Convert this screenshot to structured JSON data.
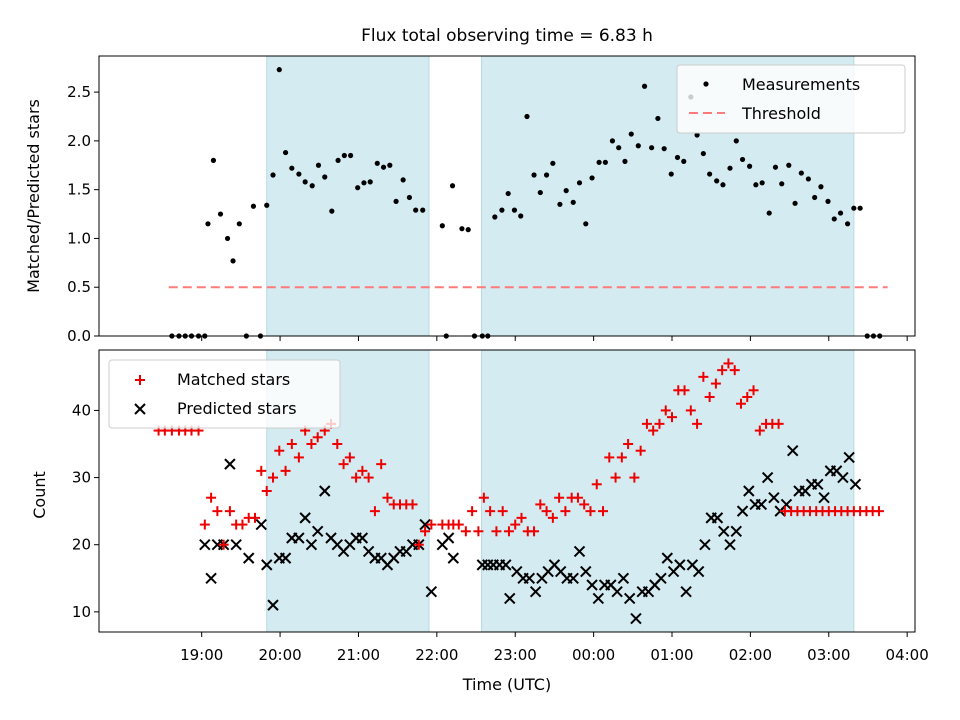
{
  "title": "Flux total observing time = 6.83 h",
  "colors": {
    "observing_span": "#d4ebf1",
    "measurements": "#000000",
    "threshold": "#ff7a7a",
    "matched": "#ee0000",
    "predicted": "#000000"
  },
  "chart_data": [
    {
      "type": "scatter",
      "ylabel": "Matched/Predicted stars",
      "ylim": [
        0,
        2.87
      ],
      "yticks": [
        0.0,
        0.5,
        1.0,
        1.5,
        2.0,
        2.5
      ],
      "ytick_labels": [
        "0.0",
        "0.5",
        "1.0",
        "1.5",
        "2.0",
        "2.5"
      ],
      "legend": {
        "placement": "top-right",
        "measurements_label": "Measurements",
        "threshold_label": "Threshold"
      },
      "observing_spans": [
        [
          19.83,
          21.9
        ],
        [
          22.57,
          27.32
        ]
      ],
      "threshold": {
        "value": 0.5,
        "x_start": 18.58,
        "x_end": 27.75
      },
      "series": [
        {
          "name": "Measurements",
          "x": [
            18.62,
            18.71,
            18.79,
            18.87,
            18.96,
            19.04,
            19.08,
            19.15,
            19.24,
            19.33,
            19.4,
            19.48,
            19.57,
            19.66,
            19.75,
            19.83,
            19.91,
            19.99,
            20.07,
            20.15,
            20.24,
            20.32,
            20.41,
            20.49,
            20.57,
            20.66,
            20.74,
            20.82,
            20.9,
            20.99,
            21.07,
            21.15,
            21.24,
            21.32,
            21.4,
            21.48,
            21.57,
            21.65,
            21.73,
            21.82,
            22.07,
            22.12,
            22.2,
            22.32,
            22.4,
            22.48,
            22.58,
            22.65,
            22.74,
            22.83,
            22.91,
            22.99,
            23.07,
            23.15,
            23.24,
            23.32,
            23.4,
            23.48,
            23.57,
            23.65,
            23.74,
            23.82,
            23.9,
            23.98,
            24.07,
            24.15,
            24.24,
            24.32,
            24.4,
            24.48,
            24.57,
            24.65,
            24.74,
            24.82,
            24.9,
            24.99,
            25.07,
            25.15,
            25.24,
            25.32,
            25.4,
            25.48,
            25.57,
            25.65,
            25.74,
            25.82,
            25.9,
            25.99,
            26.07,
            26.15,
            26.24,
            26.32,
            26.4,
            26.49,
            26.57,
            26.65,
            26.74,
            26.82,
            26.9,
            26.99,
            27.07,
            27.15,
            27.24,
            27.32,
            27.4,
            27.49,
            27.57,
            27.65
          ],
          "y": [
            0,
            0,
            0,
            0,
            0,
            0,
            1.15,
            1.8,
            1.25,
            1.0,
            0.77,
            1.15,
            0,
            1.33,
            0,
            1.34,
            1.65,
            2.73,
            1.88,
            1.72,
            1.66,
            1.58,
            1.54,
            1.75,
            1.63,
            1.28,
            1.8,
            1.85,
            1.85,
            1.52,
            1.57,
            1.58,
            1.77,
            1.73,
            1.75,
            1.38,
            1.6,
            1.42,
            1.29,
            1.29,
            1.13,
            0,
            1.54,
            1.1,
            1.09,
            0,
            0,
            0,
            1.22,
            1.29,
            1.46,
            1.29,
            1.23,
            2.25,
            1.65,
            1.47,
            1.65,
            1.77,
            1.35,
            1.49,
            1.37,
            1.57,
            1.15,
            1.62,
            1.78,
            1.78,
            2.0,
            1.93,
            1.79,
            2.07,
            1.95,
            2.56,
            1.93,
            2.23,
            1.92,
            1.66,
            1.83,
            1.79,
            2.45,
            2.06,
            1.87,
            1.66,
            1.59,
            1.55,
            1.72,
            2.0,
            1.81,
            1.74,
            1.55,
            1.57,
            1.26,
            1.73,
            1.56,
            1.75,
            1.36,
            1.67,
            1.61,
            1.42,
            1.53,
            1.38,
            1.2,
            1.26,
            1.15,
            1.31,
            1.31,
            0,
            0,
            0
          ]
        }
      ]
    },
    {
      "type": "scatter",
      "xlabel": "Time (UTC)",
      "ylabel": "Count",
      "ylim": [
        7,
        49
      ],
      "yticks": [
        10,
        20,
        30,
        40
      ],
      "ytick_labels": [
        "10",
        "20",
        "30",
        "40"
      ],
      "xlim": [
        17.69,
        28.1
      ],
      "xticks": [
        19,
        20,
        21,
        22,
        23,
        24,
        25,
        26,
        27,
        28
      ],
      "xtick_labels": [
        "19:00",
        "20:00",
        "21:00",
        "22:00",
        "23:00",
        "00:00",
        "01:00",
        "02:00",
        "03:00",
        "04:00"
      ],
      "legend": {
        "placement": "top-left"
      },
      "observing_spans": [
        [
          19.83,
          21.9
        ],
        [
          22.57,
          27.32
        ]
      ],
      "series": [
        {
          "name": "Matched stars",
          "x": [
            18.45,
            18.53,
            18.62,
            18.71,
            18.79,
            18.87,
            18.96,
            19.04,
            19.12,
            19.2,
            19.28,
            19.36,
            19.44,
            19.52,
            19.6,
            19.68,
            19.76,
            19.83,
            19.91,
            19.99,
            20.07,
            20.15,
            20.24,
            20.32,
            20.4,
            20.48,
            20.57,
            20.65,
            20.73,
            20.81,
            20.89,
            20.97,
            21.05,
            21.13,
            21.21,
            21.29,
            21.37,
            21.45,
            21.53,
            21.61,
            21.69,
            21.77,
            21.85,
            21.93,
            22.07,
            22.15,
            22.21,
            22.28,
            22.37,
            22.45,
            22.53,
            22.6,
            22.68,
            22.76,
            22.84,
            22.92,
            23.0,
            23.08,
            23.16,
            23.24,
            23.32,
            23.4,
            23.48,
            23.56,
            23.64,
            23.72,
            23.8,
            23.88,
            23.96,
            24.04,
            24.12,
            24.2,
            24.28,
            24.36,
            24.44,
            24.52,
            24.6,
            24.68,
            24.76,
            24.84,
            24.92,
            25.0,
            25.08,
            25.16,
            25.24,
            25.32,
            25.4,
            25.48,
            25.56,
            25.64,
            25.72,
            25.8,
            25.88,
            25.96,
            26.04,
            26.12,
            26.2,
            26.28,
            26.36,
            26.44,
            26.52,
            26.6,
            26.68,
            26.76,
            26.84,
            26.92,
            27.0,
            27.08,
            27.16,
            27.24,
            27.32,
            27.4,
            27.48,
            27.56,
            27.64
          ],
          "y": [
            37,
            37,
            37,
            37,
            37,
            37,
            37,
            23,
            27,
            25,
            20,
            25,
            23,
            23,
            24,
            24,
            31,
            28,
            30,
            34,
            31,
            35,
            33,
            37,
            35,
            36,
            37,
            38,
            35,
            32,
            33,
            30,
            31,
            30,
            25,
            32,
            27,
            26,
            26,
            26,
            26,
            20,
            22,
            23,
            23,
            23,
            23,
            23,
            22,
            25,
            22,
            27,
            25,
            22,
            25,
            22,
            23,
            24,
            22,
            22,
            26,
            25,
            24,
            27,
            25,
            27,
            27,
            26,
            25,
            29,
            25,
            33,
            30,
            33,
            35,
            30,
            34,
            38,
            37,
            38,
            40,
            39,
            43,
            43,
            40,
            38,
            45,
            42,
            44,
            46,
            47,
            46,
            41,
            42,
            43,
            37,
            38,
            38,
            38,
            25,
            25,
            25,
            25,
            25,
            25,
            25,
            25,
            25,
            25,
            25,
            25,
            25,
            25,
            25,
            25
          ],
          "n": 102
        },
        {
          "name": "Predicted stars",
          "x": [
            19.04,
            19.12,
            19.2,
            19.28,
            19.36,
            19.44,
            19.6,
            19.76,
            19.83,
            19.91,
            19.99,
            20.07,
            20.15,
            20.24,
            20.32,
            20.4,
            20.48,
            20.57,
            20.65,
            20.73,
            20.81,
            20.89,
            20.97,
            21.05,
            21.13,
            21.21,
            21.29,
            21.37,
            21.45,
            21.53,
            21.61,
            21.69,
            21.77,
            21.85,
            21.93,
            22.07,
            22.15,
            22.21,
            22.58,
            22.65,
            22.72,
            22.8,
            22.88,
            22.93,
            23.02,
            23.1,
            23.18,
            23.26,
            23.34,
            23.42,
            23.5,
            23.58,
            23.66,
            23.74,
            23.82,
            23.9,
            23.98,
            24.06,
            24.14,
            24.22,
            24.3,
            24.38,
            24.46,
            24.54,
            24.62,
            24.7,
            24.78,
            24.86,
            24.94,
            25.02,
            25.1,
            25.18,
            25.26,
            25.34,
            25.42,
            25.5,
            25.58,
            25.66,
            25.74,
            25.82,
            25.9,
            25.98,
            26.06,
            26.14,
            26.22,
            26.3,
            26.38,
            26.46,
            26.54,
            26.62,
            26.7,
            26.78,
            26.86,
            26.94,
            27.02,
            27.1,
            27.18,
            27.26,
            27.34
          ],
          "y": [
            20,
            15,
            20,
            20,
            32,
            20,
            18,
            23,
            17,
            11,
            18,
            18,
            21,
            21,
            24,
            20,
            22,
            28,
            21,
            20,
            19,
            20,
            21,
            21,
            19,
            18,
            18,
            17,
            18,
            19,
            19,
            20,
            20,
            23,
            13,
            20,
            21,
            18,
            17,
            17,
            17,
            17,
            17,
            12,
            16,
            15,
            15,
            13,
            15,
            16,
            17,
            16,
            15,
            15,
            19,
            16,
            14,
            12,
            14,
            14,
            13,
            15,
            12,
            9,
            13,
            13,
            14,
            15,
            18,
            16,
            17,
            13,
            17,
            16,
            20,
            24,
            24,
            22,
            20,
            22,
            25,
            28,
            26,
            26,
            30,
            27,
            25,
            26,
            34,
            28,
            28,
            29,
            29,
            27,
            31,
            31,
            30,
            33,
            29
          ]
        }
      ]
    }
  ]
}
